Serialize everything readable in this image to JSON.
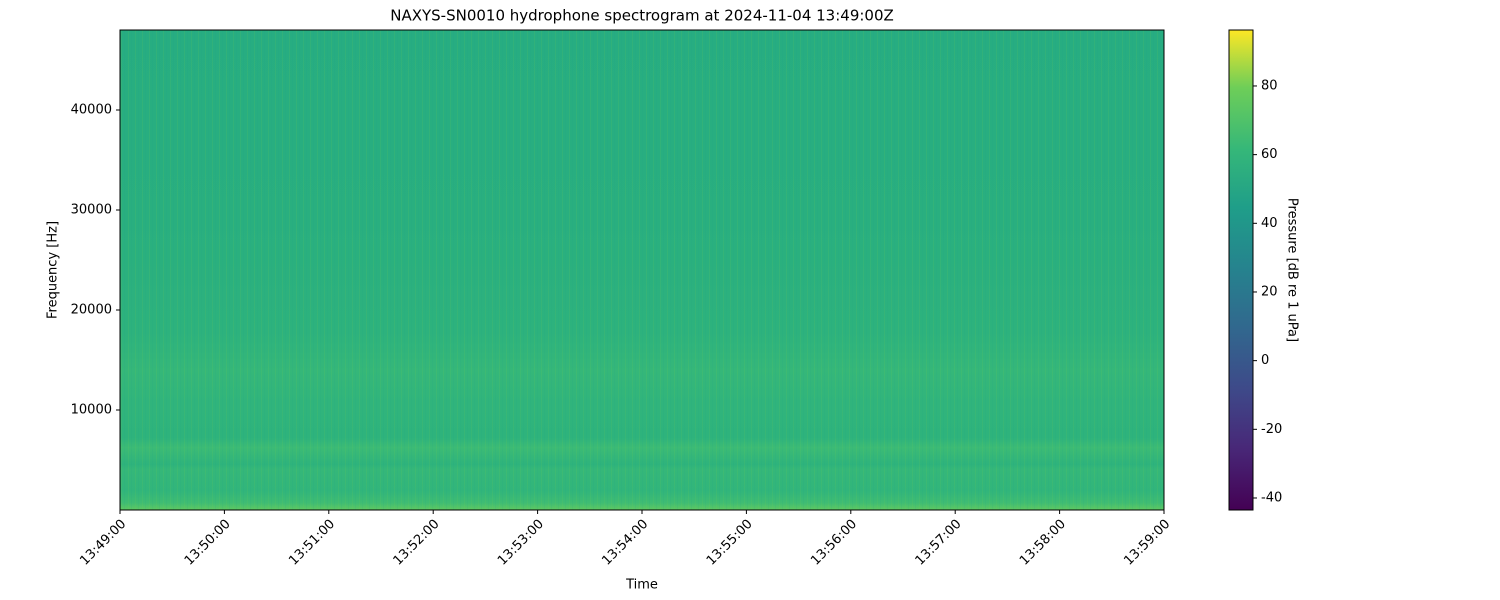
{
  "chart_data": {
    "type": "spectrogram",
    "title": "NAXYS-SN0010 hydrophone spectrogram at 2024-11-04 13:49:00Z",
    "x_label": "Time",
    "y_label": "Frequency [Hz]",
    "xticks": [
      "13:49:00",
      "13:50:00",
      "13:51:00",
      "13:52:00",
      "13:53:00",
      "13:54:00",
      "13:55:00",
      "13:56:00",
      "13:57:00",
      "13:58:00",
      "13:59:00"
    ],
    "ylim": [
      0,
      48000
    ],
    "yticks": [
      10000,
      20000,
      30000,
      40000
    ],
    "colorbar": {
      "label": "Pressure [dB re 1 uPa]",
      "lim": [
        -43.5,
        96.3
      ],
      "ticks": [
        -40,
        -20,
        0,
        20,
        40,
        60,
        80
      ]
    }
  }
}
